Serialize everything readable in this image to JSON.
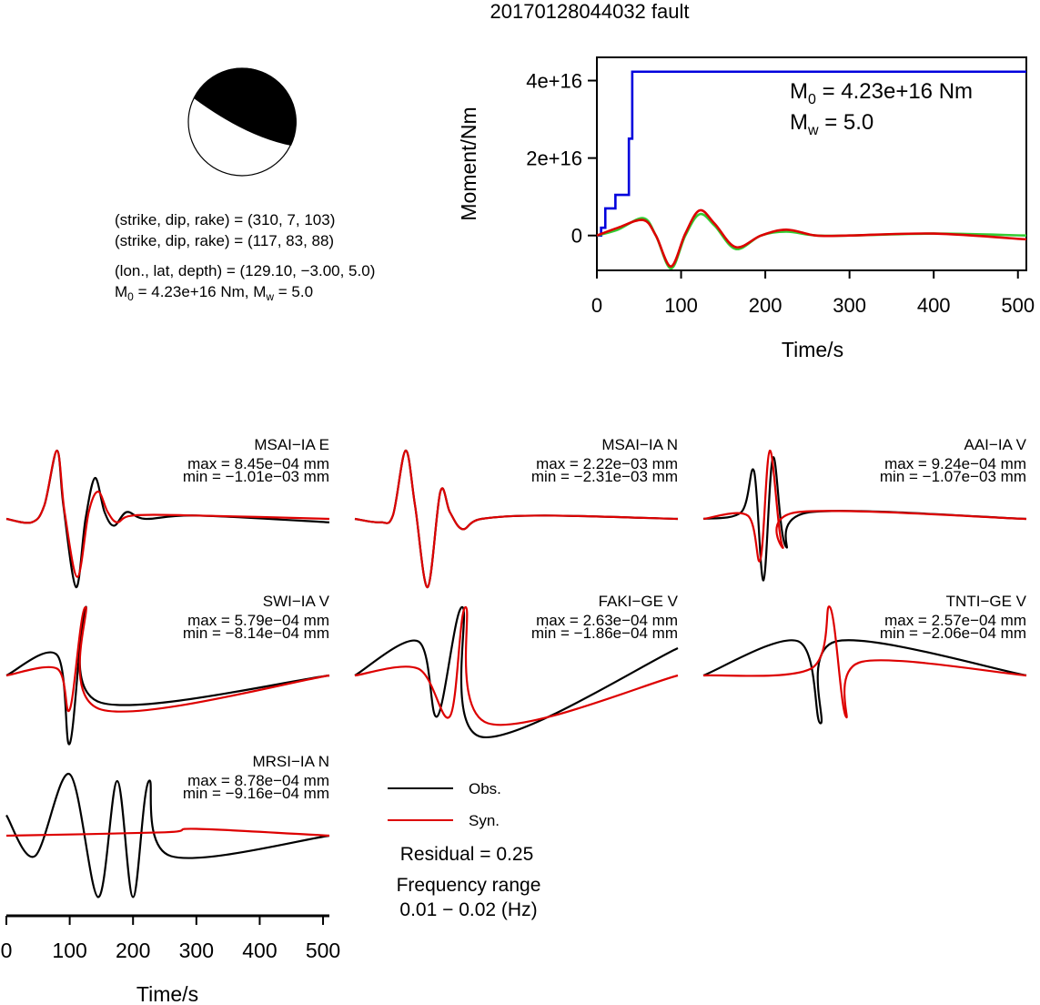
{
  "page": {
    "title": "20170128044032 fault"
  },
  "mechanism": {
    "plane1": "(strike, dip, rake) = (310, 7, 103)",
    "plane2": "(strike, dip, rake) = (117, 83, 88)",
    "location": "(lon., lat, depth) = (129.10, −3.00, 5.0)",
    "moment_prefix": "M",
    "moment_sub": "0",
    "moment_mid": " = 4.23e+16 Nm, M",
    "moment_sub2": "w",
    "moment_end": " = 5.0"
  },
  "stf_panel": {
    "ylabel": "Moment/Nm",
    "xlabel": "Time/s",
    "m0_label": "M",
    "m0_sub": "0",
    "m0_value": " = 4.23e+16 Nm",
    "mw_label": "M",
    "mw_sub": "w",
    "mw_value": " = 5.0",
    "yticks": [
      "0",
      "2e+16",
      "4e+16"
    ],
    "xticks": [
      "0",
      "100",
      "200",
      "300",
      "400",
      "500"
    ],
    "colors": {
      "cumulative": "#0000dd",
      "green": "#33cc33",
      "red": "#dd0000"
    }
  },
  "waveform_axis": {
    "xlabel": "Time/s",
    "xticks": [
      "0",
      "100",
      "200",
      "300",
      "400",
      "500"
    ]
  },
  "legend": {
    "obs": "Obs.",
    "syn": "Syn.",
    "residual": "Residual = 0.25",
    "freq_title": "Frequency range",
    "freq_range": "0.01 − 0.02 (Hz)"
  },
  "stations": [
    {
      "name": "MSAI−IA E",
      "max": "max = 8.45e−04 mm",
      "min": "min = −1.01e−03 mm"
    },
    {
      "name": "MSAI−IA N",
      "max": "max = 2.22e−03 mm",
      "min": "min = −2.31e−03 mm"
    },
    {
      "name": "AAI−IA V",
      "max": "max = 9.24e−04 mm",
      "min": "min = −1.07e−03 mm"
    },
    {
      "name": "SWI−IA V",
      "max": "max = 5.79e−04 mm",
      "min": "min = −8.14e−04 mm"
    },
    {
      "name": "FAKI−GE V",
      "max": "max = 2.63e−04 mm",
      "min": "min = −1.86e−04 mm"
    },
    {
      "name": "TNTI−GE V",
      "max": "max = 2.57e−04 mm",
      "min": "min = −2.06e−04 mm"
    },
    {
      "name": "MRSI−IA N",
      "max": "max = 8.78e−04 mm",
      "min": "min = −9.16e−04 mm"
    }
  ],
  "chart_data": [
    {
      "type": "line",
      "title": "",
      "xlabel": "Time/s",
      "ylabel": "Moment/Nm",
      "xlim": [
        0,
        510
      ],
      "ylim": [
        -9000000000000000.0,
        4.6e+16
      ],
      "series": [
        {
          "values": [
            [
              0,
              0
            ],
            [
              5,
              2000000000000000.0
            ],
            [
              10,
              7000000000000000.0
            ],
            [
              20,
              7000000000000000.0
            ],
            [
              22,
              1.05e+16
            ],
            [
              35,
              1.05e+16
            ],
            [
              38,
              2.5e+16
            ],
            [
              42,
              4.23e+16
            ],
            [
              510,
              4.23e+16
            ]
          ]
        },
        {
          "values": [
            [
              0,
              0
            ],
            [
              25,
              1500000000000000.0
            ],
            [
              55,
              4500000000000000.0
            ],
            [
              70,
              0
            ],
            [
              88,
              -8500000000000000.0
            ],
            [
              105,
              0
            ],
            [
              122,
              5500000000000000.0
            ],
            [
              140,
              2500000000000000.0
            ],
            [
              165,
              -3500000000000000.0
            ],
            [
              195,
              0
            ],
            [
              225,
              1000000000000000.0
            ],
            [
              260,
              0
            ],
            [
              300,
              0
            ],
            [
              400,
              500000000000000.0
            ],
            [
              510,
              0
            ]
          ]
        },
        {
          "values": [
            [
              0,
              0
            ],
            [
              25,
              2000000000000000.0
            ],
            [
              55,
              4000000000000000.0
            ],
            [
              70,
              0
            ],
            [
              88,
              -8000000000000000.0
            ],
            [
              105,
              500000000000000.0
            ],
            [
              122,
              6500000000000000.0
            ],
            [
              140,
              3000000000000000.0
            ],
            [
              165,
              -3000000000000000.0
            ],
            [
              195,
              0
            ],
            [
              225,
              1500000000000000.0
            ],
            [
              260,
              0
            ],
            [
              300,
              0
            ],
            [
              400,
              500000000000000.0
            ],
            [
              510,
              -1000000000000000.0
            ]
          ]
        }
      ]
    },
    {
      "type": "line",
      "xlabel": "Time/s",
      "xlim": [
        0,
        510
      ],
      "panels": [
        {
          "station": "MSAI−IA E",
          "obs": [
            [
              0,
              0
            ],
            [
              40,
              -0.05
            ],
            [
              60,
              0.2
            ],
            [
              80,
              1.0
            ],
            [
              90,
              0.2
            ],
            [
              110,
              -1.0
            ],
            [
              125,
              0.0
            ],
            [
              140,
              0.6
            ],
            [
              155,
              0.1
            ],
            [
              170,
              -0.1
            ],
            [
              190,
              0.1
            ],
            [
              220,
              0
            ],
            [
              300,
              0.05
            ],
            [
              510,
              -0.05
            ]
          ],
          "syn": [
            [
              0,
              0
            ],
            [
              40,
              -0.05
            ],
            [
              60,
              0.2
            ],
            [
              80,
              1.0
            ],
            [
              92,
              0.1
            ],
            [
              112,
              -0.85
            ],
            [
              130,
              0.1
            ],
            [
              145,
              0.4
            ],
            [
              160,
              0.1
            ],
            [
              175,
              -0.05
            ],
            [
              200,
              0.05
            ],
            [
              300,
              0.05
            ],
            [
              510,
              0
            ]
          ]
        },
        {
          "station": "MSAI−IA N",
          "obs": [
            [
              0,
              0
            ],
            [
              40,
              -0.05
            ],
            [
              60,
              0.05
            ],
            [
              80,
              1.0
            ],
            [
              95,
              0.2
            ],
            [
              115,
              -1.0
            ],
            [
              135,
              0.4
            ],
            [
              150,
              0.1
            ],
            [
              170,
              -0.15
            ],
            [
              200,
              0
            ],
            [
              300,
              0.05
            ],
            [
              510,
              0
            ]
          ],
          "syn": [
            [
              0,
              0
            ],
            [
              40,
              -0.05
            ],
            [
              60,
              0.05
            ],
            [
              80,
              1.0
            ],
            [
              95,
              0.2
            ],
            [
              115,
              -1.0
            ],
            [
              135,
              0.4
            ],
            [
              150,
              0.1
            ],
            [
              170,
              -0.15
            ],
            [
              200,
              0
            ],
            [
              300,
              0.05
            ],
            [
              510,
              0
            ]
          ]
        },
        {
          "station": "AAI−IA V",
          "obs": [
            [
              0,
              0
            ],
            [
              60,
              0.1
            ],
            [
              80,
              0.7
            ],
            [
              95,
              -0.9
            ],
            [
              110,
              0.9
            ],
            [
              130,
              -0.4
            ],
            [
              170,
              0.1
            ],
            [
              510,
              0
            ]
          ],
          "syn": [
            [
              0,
              0
            ],
            [
              70,
              0.05
            ],
            [
              90,
              -0.6
            ],
            [
              105,
              1.0
            ],
            [
              125,
              -0.4
            ],
            [
              150,
              0.1
            ],
            [
              510,
              0
            ]
          ]
        },
        {
          "station": "SWI−IA V",
          "obs": [
            [
              0,
              0
            ],
            [
              80,
              0.3
            ],
            [
              100,
              -1.0
            ],
            [
              125,
              1.0
            ],
            [
              150,
              -0.4
            ],
            [
              510,
              0
            ]
          ],
          "syn": [
            [
              0,
              0
            ],
            [
              80,
              0.1
            ],
            [
              100,
              -0.5
            ],
            [
              125,
              1.0
            ],
            [
              150,
              -0.5
            ],
            [
              510,
              0
            ]
          ]
        },
        {
          "station": "FAKI−GE V",
          "obs": [
            [
              0,
              0
            ],
            [
              100,
              0.5
            ],
            [
              130,
              -0.6
            ],
            [
              170,
              1.0
            ],
            [
              200,
              -0.9
            ],
            [
              510,
              0.4
            ]
          ],
          "syn": [
            [
              0,
              0
            ],
            [
              100,
              0.1
            ],
            [
              150,
              -0.6
            ],
            [
              175,
              1.0
            ],
            [
              210,
              -0.7
            ],
            [
              510,
              0
            ]
          ]
        },
        {
          "station": "TNTI−GE V",
          "obs": [
            [
              0,
              0
            ],
            [
              150,
              0.5
            ],
            [
              185,
              -0.7
            ],
            [
              210,
              0.5
            ],
            [
              510,
              0
            ]
          ],
          "syn": [
            [
              0,
              0
            ],
            [
              170,
              0.1
            ],
            [
              200,
              1.0
            ],
            [
              225,
              -0.6
            ],
            [
              250,
              0.2
            ],
            [
              510,
              0
            ]
          ]
        },
        {
          "station": "MRSI−IA N",
          "obs": [
            [
              0,
              0.3
            ],
            [
              45,
              -0.3
            ],
            [
              100,
              0.9
            ],
            [
              145,
              -0.9
            ],
            [
              175,
              0.8
            ],
            [
              200,
              -0.9
            ],
            [
              225,
              0.8
            ],
            [
              260,
              -0.3
            ],
            [
              510,
              0
            ]
          ],
          "syn": [
            [
              0,
              0
            ],
            [
              250,
              0.05
            ],
            [
              300,
              0.1
            ],
            [
              510,
              0
            ]
          ]
        }
      ]
    }
  ]
}
